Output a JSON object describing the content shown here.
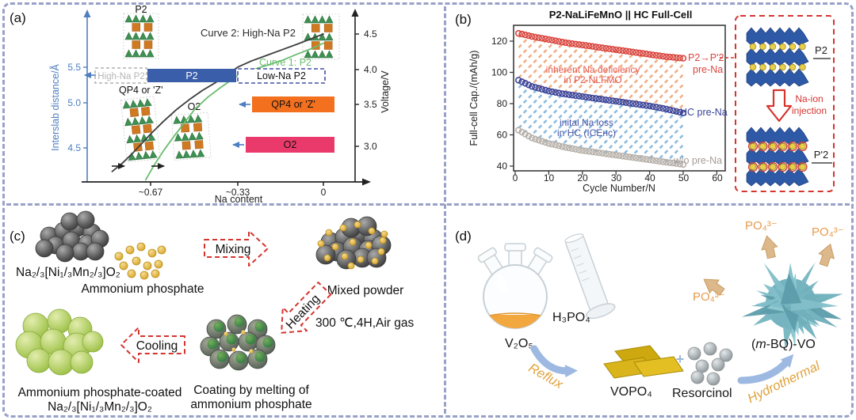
{
  "panels": {
    "a": {
      "label": "(a)",
      "p2_struct_label": "P2",
      "qp4_struct_label": "QP4 or 'Z'",
      "o2_struct_label": "O2",
      "curve2_label": "Curve 2: High-Na P2",
      "curve1_label": "Curve 1: P2",
      "band_high_na": "High-Na P2",
      "band_p2": "P2",
      "band_low_na": "Low-Na P2",
      "band_qp4": "QP4 or 'Z'",
      "band_o2": "O2"
    },
    "b": {
      "label": "(b)",
      "series1_label_line1": "P2→P'2",
      "series1_label_line2": "pre-Na",
      "series2_label": "HC pre-Na",
      "series3_label": "w/o pre-Na",
      "ann1_line1": "inherent Na deficiency",
      "ann1_line2": "in P2-NLFMO",
      "ann2_line1": "inital Na loss",
      "ann2_line2": "in HC (ICEʜᴄ)",
      "inset_p2": "P2",
      "inset_pp2": "P'2",
      "inset_arrow_line1": "Na-ion",
      "inset_arrow_line2": "injection"
    },
    "c": {
      "label": "(c)",
      "precursor": "Na₂/₃[Ni₁/₃Mn₂/₃]O₂",
      "phosphate": "Ammonium phosphate",
      "mixing": "Mixing",
      "mixed_powder": "Mixed powder",
      "heating": "Heating",
      "conditions": "300 ℃,4H,Air gas",
      "coating_line1": "Coating by melting of",
      "coating_line2": "ammonium phosphate",
      "cooling": "Cooling",
      "product_line1": "Ammonium phosphate-coated",
      "product_line2": "Na₂/₃[Ni₁/₃Mn₂/₃]O₂"
    },
    "d": {
      "label": "(d)",
      "h3po4": "H₃PO₄",
      "v2o5": "V₂O₅",
      "reflux": "Reflux",
      "vopo4": "VOPO₄",
      "plus": "+",
      "resorcinol": "Resorcinol",
      "hydrothermal": "Hydrothermal",
      "product_prefix": "(",
      "product_m": "m",
      "product_suffix": "-BQ)-VO",
      "po4": "PO₄³⁻"
    }
  },
  "chart_data": [
    {
      "panel": "a",
      "type": "line",
      "xlabel": "Na content",
      "x_ticks": [
        "~0.67",
        "~0.33",
        "0"
      ],
      "x_axis_note": "Na content decreases from left (~0.67+) to right (0)",
      "ylabel_left": "Interslab distance/Å",
      "y_ticks_left": [
        "5.5",
        "5.0",
        "4.5"
      ],
      "ylabel_right": "Voltage/V",
      "y_ticks_right": [
        "4.5",
        "4.0",
        "3.5",
        "3.0"
      ],
      "series": [
        {
          "name": "Curve 2: High-Na P2",
          "color": "#3d3d3d",
          "na_content": [
            0.82,
            0.78,
            0.74,
            0.7,
            0.67,
            0.62,
            0.57,
            0.52,
            0.47,
            0.42,
            0.37,
            0.33,
            0.28,
            0.22,
            0.16,
            0.1,
            0.05,
            0.0
          ],
          "voltage": [
            2.7,
            2.8,
            2.92,
            3.05,
            3.15,
            3.3,
            3.44,
            3.57,
            3.7,
            3.81,
            3.94,
            4.04,
            4.12,
            4.2,
            4.28,
            4.36,
            4.43,
            4.5
          ]
        },
        {
          "name": "Curve 1: P2",
          "color": "#69bd6f",
          "na_content": [
            0.69,
            0.66,
            0.62,
            0.58,
            0.54,
            0.5,
            0.45,
            0.4,
            0.35,
            0.33,
            0.28,
            0.22,
            0.16,
            0.1,
            0.05,
            0.0
          ],
          "voltage": [
            2.6,
            2.76,
            2.95,
            3.12,
            3.28,
            3.44,
            3.6,
            3.74,
            3.87,
            3.92,
            3.99,
            4.06,
            4.13,
            4.22,
            4.29,
            4.37
          ]
        }
      ],
      "phase_bands": [
        {
          "label": "High-Na P2",
          "style": "dashed-gray",
          "voltage_level": 3.95
        },
        {
          "label": "P2",
          "style": "solid-blue",
          "color": "#3a5ea9",
          "voltage_level": 3.95
        },
        {
          "label": "Low-Na P2",
          "style": "dashed-navy",
          "voltage_level": 3.95
        },
        {
          "label": "QP4 or 'Z'",
          "style": "solid-orange",
          "color": "#f3701f",
          "voltage_level": 3.5
        },
        {
          "label": "O2",
          "style": "solid-pink",
          "color": "#ea3a6b",
          "voltage_level": 3.0
        }
      ]
    },
    {
      "panel": "b",
      "type": "scatter",
      "title": "P2-NaLiFeMnO || HC Full-Cell",
      "xlabel": "Cycle Number/N",
      "ylabel": "Full-cell Cap./(mAh/g)",
      "xlim": [
        0,
        65
      ],
      "ylim": [
        37,
        130
      ],
      "x_ticks": [
        0,
        10,
        20,
        30,
        40,
        50,
        60
      ],
      "y_ticks": [
        40,
        60,
        80,
        100,
        120
      ],
      "series": [
        {
          "name": "P2→P'2 pre-Na",
          "color": "#d9453e",
          "cycles": [
            1,
            5,
            10,
            15,
            20,
            25,
            30,
            35,
            40,
            45,
            50
          ],
          "values": [
            125,
            123,
            121,
            119,
            117.5,
            116,
            114.5,
            113,
            111.5,
            110,
            109
          ]
        },
        {
          "name": "HC pre-Na",
          "color": "#3a4398",
          "cycles": [
            1,
            5,
            10,
            15,
            20,
            25,
            30,
            35,
            40,
            45,
            50
          ],
          "values": [
            95,
            91,
            88,
            86,
            84.5,
            83,
            81.5,
            80,
            78.5,
            76.5,
            74
          ]
        },
        {
          "name": "w/o pre-Na",
          "color": "#b7b0a9",
          "cycles": [
            1,
            5,
            10,
            15,
            20,
            25,
            30,
            35,
            40,
            45,
            50
          ],
          "values": [
            63,
            58,
            54.5,
            52,
            50,
            48.5,
            47,
            45.5,
            44,
            42.5,
            41
          ]
        }
      ],
      "annotations": [
        "inherent Na deficiency in P2-NLFMO",
        "inital Na loss in HC (ICEʜᴄ)"
      ],
      "legend_position": "labels at right ends of curves"
    }
  ]
}
